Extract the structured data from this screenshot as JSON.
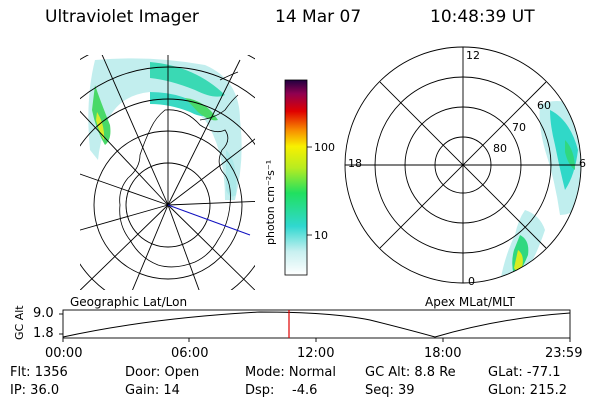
{
  "header": {
    "instrument": "Ultraviolet Imager",
    "date": "14 Mar 07",
    "time": "10:48:39 UT"
  },
  "colorbar": {
    "unit_label": "photon cm⁻²s⁻¹",
    "ticks": [
      "100",
      "10"
    ]
  },
  "left_panel": {
    "label": "Geographic Lat/Lon"
  },
  "right_panel": {
    "label": "Apex MLat/MLT",
    "mlt_labels": {
      "top": "12",
      "left": "18",
      "right": "6",
      "bottom": "0"
    },
    "mlat_labels": [
      "60",
      "70",
      "80"
    ]
  },
  "altitude_plot": {
    "ylabel": "GC Alt",
    "yticks": [
      "9.0",
      "1.8"
    ],
    "xticks": [
      "00:00",
      "06:00",
      "12:00",
      "18:00",
      "23:59"
    ],
    "marker_color": "#e00000"
  },
  "status": {
    "flt": "Flt: 1356",
    "ip": "IP: 36.0",
    "door": "Door: Open",
    "gain": "Gain: 14",
    "mode": "Mode: Normal",
    "dsp_label": "Dsp:",
    "dsp_value": "-4.6",
    "gc_alt": "GC Alt: 8.8 Re",
    "seq": "Seq: 39",
    "glat": "GLat: -77.1",
    "glon": "GLon: 215.2"
  }
}
